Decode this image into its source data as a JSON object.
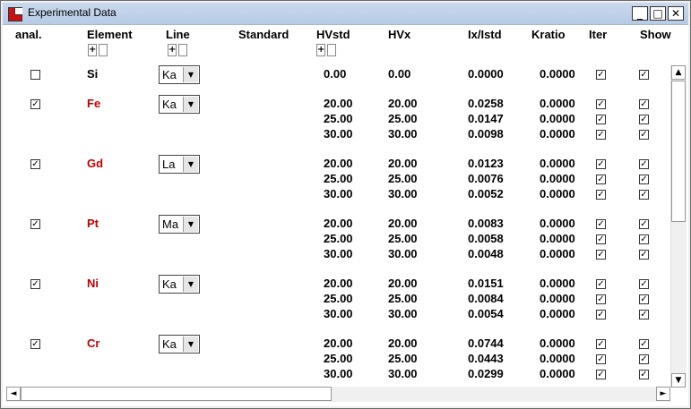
{
  "window": {
    "title": "Experimental Data",
    "minimize": "_",
    "maximize": "□",
    "close": "✕"
  },
  "headers": {
    "anal": "anal.",
    "element": "Element",
    "line": "Line",
    "standard": "Standard",
    "hvstd": "HVstd",
    "hvx": "HVx",
    "ixistd": "Ix/Istd",
    "kratio": "Kratio",
    "iter": "Iter",
    "show": "Show"
  },
  "mini_plus": "+",
  "scrollbar": {
    "up": "▲",
    "down": "▼",
    "left": "◄",
    "right": "►"
  },
  "elements": [
    {
      "symbol": "Si",
      "line": "Ka",
      "analyzed": false,
      "color": "#000000",
      "rows": [
        {
          "hvstd": "0.00",
          "hvx": "0.00",
          "ratio": "0.0000",
          "kratio": "0.0000"
        }
      ]
    },
    {
      "symbol": "Fe",
      "line": "Ka",
      "analyzed": true,
      "color": "#c00000",
      "rows": [
        {
          "hvstd": "20.00",
          "hvx": "20.00",
          "ratio": "0.0258",
          "kratio": "0.0000"
        },
        {
          "hvstd": "25.00",
          "hvx": "25.00",
          "ratio": "0.0147",
          "kratio": "0.0000"
        },
        {
          "hvstd": "30.00",
          "hvx": "30.00",
          "ratio": "0.0098",
          "kratio": "0.0000"
        }
      ]
    },
    {
      "symbol": "Gd",
      "line": "La",
      "analyzed": true,
      "color": "#c00000",
      "rows": [
        {
          "hvstd": "20.00",
          "hvx": "20.00",
          "ratio": "0.0123",
          "kratio": "0.0000"
        },
        {
          "hvstd": "25.00",
          "hvx": "25.00",
          "ratio": "0.0076",
          "kratio": "0.0000"
        },
        {
          "hvstd": "30.00",
          "hvx": "30.00",
          "ratio": "0.0052",
          "kratio": "0.0000"
        }
      ]
    },
    {
      "symbol": "Pt",
      "line": "Ma",
      "analyzed": true,
      "color": "#c00000",
      "rows": [
        {
          "hvstd": "20.00",
          "hvx": "20.00",
          "ratio": "0.0083",
          "kratio": "0.0000"
        },
        {
          "hvstd": "25.00",
          "hvx": "25.00",
          "ratio": "0.0058",
          "kratio": "0.0000"
        },
        {
          "hvstd": "30.00",
          "hvx": "30.00",
          "ratio": "0.0048",
          "kratio": "0.0000"
        }
      ]
    },
    {
      "symbol": "Ni",
      "line": "Ka",
      "analyzed": true,
      "color": "#c00000",
      "rows": [
        {
          "hvstd": "20.00",
          "hvx": "20.00",
          "ratio": "0.0151",
          "kratio": "0.0000"
        },
        {
          "hvstd": "25.00",
          "hvx": "25.00",
          "ratio": "0.0084",
          "kratio": "0.0000"
        },
        {
          "hvstd": "30.00",
          "hvx": "30.00",
          "ratio": "0.0054",
          "kratio": "0.0000"
        }
      ]
    },
    {
      "symbol": "Cr",
      "line": "Ka",
      "analyzed": true,
      "color": "#c00000",
      "rows": [
        {
          "hvstd": "20.00",
          "hvx": "20.00",
          "ratio": "0.0744",
          "kratio": "0.0000"
        },
        {
          "hvstd": "25.00",
          "hvx": "25.00",
          "ratio": "0.0443",
          "kratio": "0.0000"
        },
        {
          "hvstd": "30.00",
          "hvx": "30.00",
          "ratio": "0.0299",
          "kratio": "0.0000"
        }
      ]
    }
  ],
  "checkmark": "✓"
}
